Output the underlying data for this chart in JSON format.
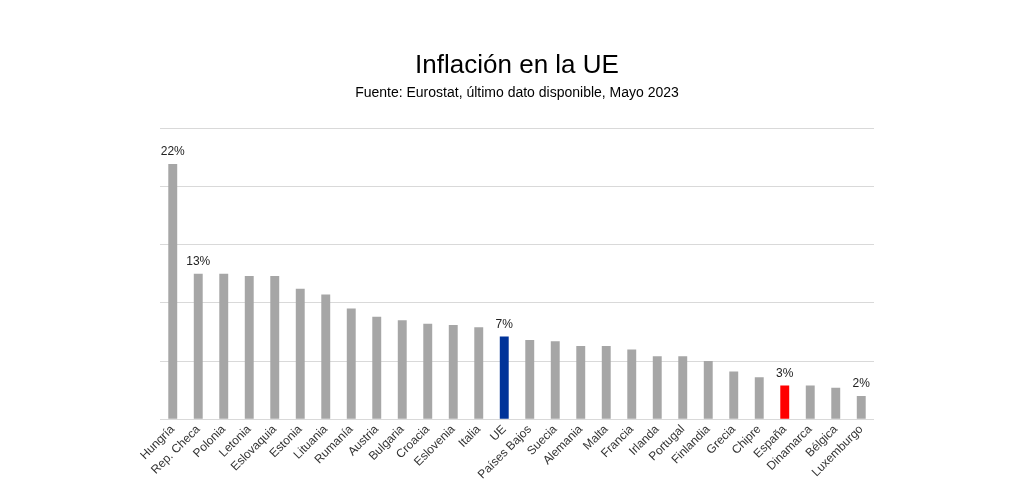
{
  "chart_data": {
    "type": "bar",
    "title": "Inflación en la UE",
    "subtitle": "Fuente: Eurostat, último dato disponible, Mayo 2023",
    "categories": [
      "Hungría",
      "Rep. Checa",
      "Polonia",
      "Letonia",
      "Eslovaquia",
      "Estonia",
      "Lituania",
      "Rumanía",
      "Austria",
      "Bulgaria",
      "Croacia",
      "Eslovenia",
      "Italia",
      "UE",
      "Países Bajos",
      "Suecia",
      "Alemania",
      "Malta",
      "Francia",
      "Irlanda",
      "Portugal",
      "Finlandia",
      "Grecia",
      "Chipre",
      "España",
      "Dinamarca",
      "Bélgica",
      "Luxemburgo"
    ],
    "values": [
      21.9,
      12.5,
      12.5,
      12.3,
      12.3,
      11.2,
      10.7,
      9.5,
      8.8,
      8.5,
      8.2,
      8.1,
      7.9,
      7.1,
      6.8,
      6.7,
      6.3,
      6.3,
      6.0,
      5.4,
      5.4,
      5.0,
      4.1,
      3.6,
      2.9,
      2.9,
      2.7,
      2.0
    ],
    "colors": [
      "#a6a6a6",
      "#a6a6a6",
      "#a6a6a6",
      "#a6a6a6",
      "#a6a6a6",
      "#a6a6a6",
      "#a6a6a6",
      "#a6a6a6",
      "#a6a6a6",
      "#a6a6a6",
      "#a6a6a6",
      "#a6a6a6",
      "#a6a6a6",
      "#003399",
      "#a6a6a6",
      "#a6a6a6",
      "#a6a6a6",
      "#a6a6a6",
      "#a6a6a6",
      "#a6a6a6",
      "#a6a6a6",
      "#a6a6a6",
      "#a6a6a6",
      "#a6a6a6",
      "#ff0000",
      "#a6a6a6",
      "#a6a6a6",
      "#a6a6a6"
    ],
    "value_labels": [
      "22%",
      "13%",
      null,
      null,
      null,
      null,
      null,
      null,
      null,
      null,
      null,
      null,
      null,
      "7%",
      null,
      null,
      null,
      null,
      null,
      null,
      null,
      null,
      null,
      null,
      "3%",
      null,
      null,
      "2%"
    ],
    "ylim": [
      0,
      25
    ],
    "yticks": [
      {
        "value": 0,
        "label": null
      },
      {
        "value": 5,
        "label": null
      },
      {
        "value": 10,
        "label": null
      },
      {
        "value": 15,
        "label": null
      },
      {
        "value": 20,
        "label": null
      },
      {
        "value": 25,
        "label": null
      }
    ],
    "grid": "y",
    "tick_labels": "x",
    "legend": false
  }
}
